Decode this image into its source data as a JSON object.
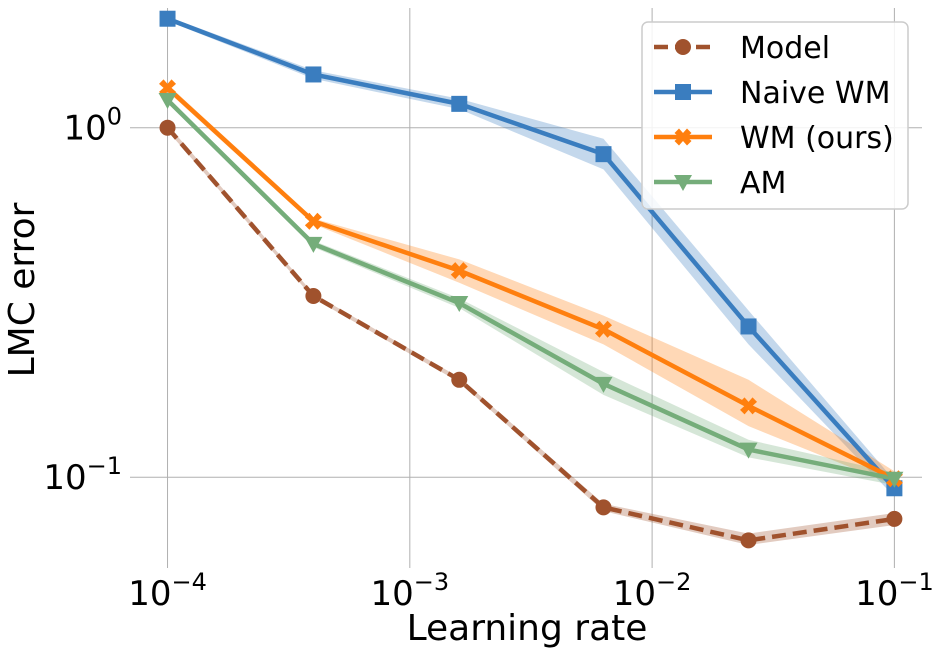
{
  "chart_data": {
    "type": "line",
    "xscale": "log",
    "yscale": "log",
    "xlabel": "Learning rate",
    "ylabel": "LMC error",
    "xlim": [
      7e-05,
      0.13
    ],
    "ylim": [
      0.055,
      2.2
    ],
    "grid": true,
    "legend_position": "top-right",
    "x": [
      0.0001,
      0.0004,
      0.0016,
      0.0063,
      0.025,
      0.1
    ],
    "xticks": [
      {
        "value": 0.0001,
        "base": "10",
        "exp": "−4"
      },
      {
        "value": 0.001,
        "base": "10",
        "exp": "−3"
      },
      {
        "value": 0.01,
        "base": "10",
        "exp": "−2"
      },
      {
        "value": 0.1,
        "base": "10",
        "exp": "−1"
      }
    ],
    "yticks": [
      {
        "value": 1.0,
        "base": "10",
        "exp": "0"
      },
      {
        "value": 0.1,
        "base": "10",
        "exp": "−1"
      }
    ],
    "series": [
      {
        "name": "Model",
        "color": "#a0522d",
        "linestyle": "dashed",
        "marker": "circle",
        "values": [
          1.0,
          0.33,
          0.19,
          0.082,
          0.066,
          0.076
        ],
        "lower": [
          0.98,
          0.325,
          0.187,
          0.08,
          0.064,
          0.073
        ],
        "upper": [
          1.02,
          0.335,
          0.193,
          0.084,
          0.069,
          0.079
        ]
      },
      {
        "name": "Naive WM",
        "color": "#3a7dbf",
        "linestyle": "solid",
        "marker": "square",
        "values": [
          2.05,
          1.42,
          1.17,
          0.84,
          0.27,
          0.093
        ],
        "lower": [
          2.02,
          1.38,
          1.13,
          0.76,
          0.24,
          0.088
        ],
        "upper": [
          2.08,
          1.46,
          1.21,
          0.93,
          0.3,
          0.098
        ]
      },
      {
        "name": "WM (ours)",
        "color": "#ff7f0e",
        "linestyle": "solid",
        "marker": "x",
        "values": [
          1.3,
          0.54,
          0.39,
          0.265,
          0.16,
          0.099
        ],
        "lower": [
          1.27,
          0.53,
          0.36,
          0.24,
          0.14,
          0.095
        ],
        "upper": [
          1.33,
          0.55,
          0.42,
          0.29,
          0.19,
          0.104
        ]
      },
      {
        "name": "AM",
        "color": "#75ad7a",
        "linestyle": "solid",
        "marker": "triangle-down",
        "values": [
          1.2,
          0.465,
          0.315,
          0.185,
          0.12,
          0.099
        ],
        "lower": [
          1.18,
          0.455,
          0.305,
          0.172,
          0.114,
          0.095
        ],
        "upper": [
          1.22,
          0.475,
          0.325,
          0.2,
          0.128,
          0.103
        ]
      }
    ]
  }
}
